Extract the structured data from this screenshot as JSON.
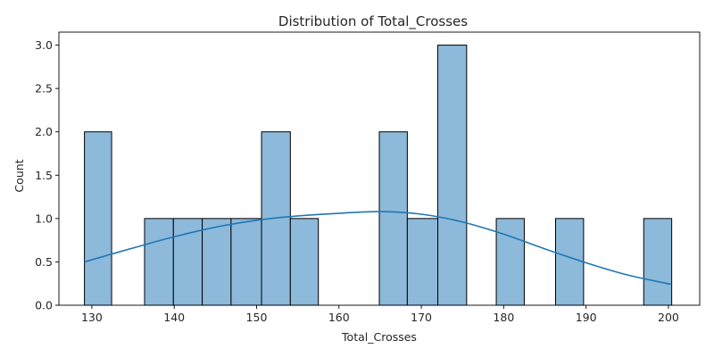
{
  "chart_data": {
    "type": "bar",
    "title": "Distribution of Total_Crosses",
    "xlabel": "Total_Crosses",
    "ylabel": "Count",
    "xlim": [
      126.0,
      203.8
    ],
    "ylim": [
      0,
      3.15
    ],
    "xticks": [
      130,
      140,
      150,
      160,
      170,
      180,
      190,
      200
    ],
    "yticks": [
      0.0,
      0.5,
      1.0,
      1.5,
      2.0,
      2.5,
      3.0
    ],
    "ytick_labels": [
      "0.0",
      "0.5",
      "1.0",
      "1.5",
      "2.0",
      "2.5",
      "3.0"
    ],
    "grid": false,
    "bins": [
      {
        "x0": 129.1,
        "x1": 132.4,
        "count": 2
      },
      {
        "x0": 136.4,
        "x1": 139.9,
        "count": 1
      },
      {
        "x0": 139.9,
        "x1": 143.4,
        "count": 1
      },
      {
        "x0": 143.4,
        "x1": 146.9,
        "count": 1
      },
      {
        "x0": 146.9,
        "x1": 150.6,
        "count": 1
      },
      {
        "x0": 150.6,
        "x1": 154.1,
        "count": 2
      },
      {
        "x0": 154.1,
        "x1": 157.5,
        "count": 1
      },
      {
        "x0": 164.9,
        "x1": 168.3,
        "count": 2
      },
      {
        "x0": 168.3,
        "x1": 172.0,
        "count": 1
      },
      {
        "x0": 172.0,
        "x1": 175.5,
        "count": 3
      },
      {
        "x0": 179.1,
        "x1": 182.5,
        "count": 1
      },
      {
        "x0": 186.3,
        "x1": 189.7,
        "count": 1
      },
      {
        "x0": 197.0,
        "x1": 200.4,
        "count": 1
      }
    ],
    "kde": {
      "x": [
        129.1,
        135,
        140,
        145,
        150,
        155,
        160,
        165,
        170,
        175,
        180,
        185,
        190,
        195,
        200.4
      ],
      "y": [
        0.5,
        0.66,
        0.79,
        0.9,
        0.98,
        1.03,
        1.06,
        1.08,
        1.05,
        0.96,
        0.82,
        0.65,
        0.49,
        0.35,
        0.24
      ]
    },
    "colors": {
      "bar_fill": "#8db9da",
      "bar_edge": "#000000",
      "kde_line": "#1f77b4"
    }
  }
}
